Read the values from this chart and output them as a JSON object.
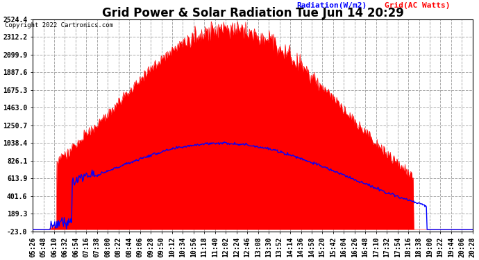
{
  "title": "Grid Power & Solar Radiation Tue Jun 14 20:29",
  "copyright": "Copyright 2022 Cartronics.com",
  "legend_radiation": "Radiation(W/m2)",
  "legend_grid": "Grid(AC Watts)",
  "ylim_min": -23.0,
  "ylim_max": 2524.4,
  "yticks": [
    2524.4,
    2312.2,
    2099.9,
    1887.6,
    1675.3,
    1463.0,
    1250.7,
    1038.4,
    826.1,
    613.9,
    401.6,
    189.3,
    -23.0
  ],
  "bg_color": "#ffffff",
  "plot_bg_color": "#ffffff",
  "fill_color": "#ff0000",
  "radiation_line_color": "#0000ff",
  "grid_line_color": "#ff0000",
  "title_fontsize": 12,
  "label_fontsize": 7,
  "time_labels": [
    "05:26",
    "05:48",
    "06:10",
    "06:32",
    "06:54",
    "07:16",
    "07:38",
    "08:00",
    "08:22",
    "08:44",
    "09:06",
    "09:28",
    "09:50",
    "10:12",
    "10:34",
    "10:56",
    "11:18",
    "11:40",
    "12:02",
    "12:24",
    "12:46",
    "13:08",
    "13:30",
    "13:52",
    "14:14",
    "14:36",
    "14:58",
    "15:20",
    "15:42",
    "16:04",
    "16:26",
    "16:48",
    "17:10",
    "17:32",
    "17:54",
    "18:16",
    "18:38",
    "19:00",
    "19:22",
    "19:44",
    "20:06",
    "20:28"
  ]
}
